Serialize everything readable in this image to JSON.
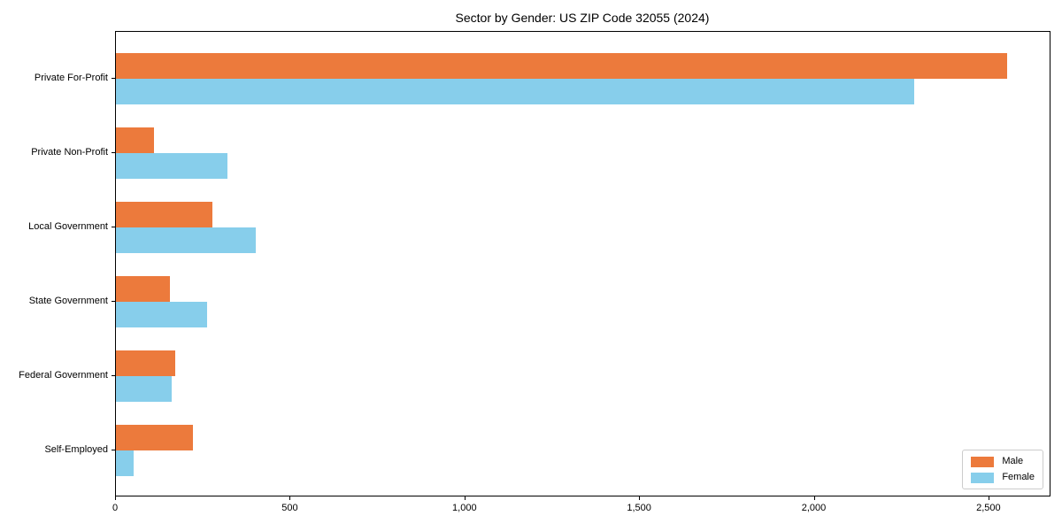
{
  "chart_data": {
    "type": "bar",
    "orientation": "horizontal",
    "title": "Sector by Gender: US ZIP Code 32055 (2024)",
    "categories": [
      "Private For-Profit",
      "Private Non-Profit",
      "Local Government",
      "State Government",
      "Federal Government",
      "Self-Employed"
    ],
    "series": [
      {
        "name": "Male",
        "color": "#ec7a3c",
        "values": [
          2550,
          110,
          275,
          155,
          170,
          220
        ]
      },
      {
        "name": "Female",
        "color": "#87ceeb",
        "values": [
          2285,
          320,
          400,
          260,
          160,
          50
        ]
      }
    ],
    "xlabel": "",
    "ylabel": "",
    "xlim": [
      0,
      2675
    ],
    "xticks": {
      "values": [
        0,
        500,
        1000,
        1500,
        2000,
        2500
      ],
      "labels": [
        "0",
        "500",
        "1,000",
        "1,500",
        "2,000",
        "2,500"
      ]
    },
    "grid": false,
    "legend_position": "lower right",
    "frame_color": "#000000",
    "legend_border_color": "#cccccc",
    "background_color": "#ffffff"
  }
}
